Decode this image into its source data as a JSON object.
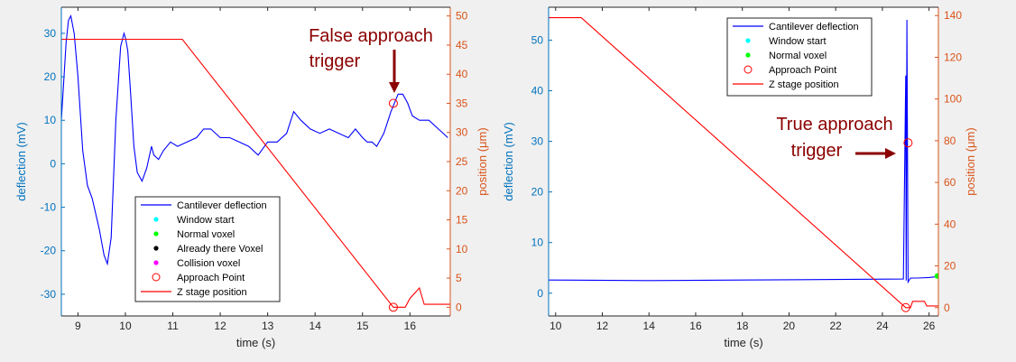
{
  "chart_data": [
    {
      "type": "line",
      "xlabel": "time (s)",
      "ylabel_left": "deflection (mV)",
      "ylabel_right": "position (μm)",
      "xlim": [
        8.65,
        16.85
      ],
      "ylim_left": [
        -35,
        36
      ],
      "ylim_right": [
        -1.5,
        51.5
      ],
      "xticks": [
        "9",
        "10",
        "11",
        "12",
        "13",
        "14",
        "15",
        "16"
      ],
      "yticks_left": [
        "30",
        "20",
        "10",
        "0",
        "-10",
        "-20",
        "-30"
      ],
      "yticks_right": [
        "50",
        "45",
        "40",
        "35",
        "30",
        "25",
        "20",
        "15",
        "10",
        "5",
        "0"
      ],
      "legend_position": "bottom-right",
      "legend": [
        "Cantilever deflection",
        "Window start",
        "Normal voxel",
        "Already there Voxel",
        "Collision voxel",
        "Approach Point",
        "Z stage position"
      ],
      "annotation": [
        "False approach",
        "trigger"
      ],
      "series": [
        {
          "name": "Cantilever deflection",
          "axis": "left",
          "color": "#0000ff",
          "x": [
            8.65,
            8.75,
            8.8,
            8.85,
            8.92,
            9.0,
            9.1,
            9.2,
            9.3,
            9.45,
            9.55,
            9.62,
            9.7,
            9.8,
            9.9,
            9.97,
            10.0,
            10.05,
            10.1,
            10.18,
            10.25,
            10.35,
            10.45,
            10.55,
            10.6,
            10.7,
            10.8,
            10.95,
            11.1,
            11.3,
            11.5,
            11.65,
            11.8,
            12.0,
            12.2,
            12.4,
            12.6,
            12.8,
            13.0,
            13.2,
            13.4,
            13.55,
            13.7,
            13.9,
            14.1,
            14.3,
            14.5,
            14.7,
            14.85,
            15.0,
            15.1,
            15.2,
            15.3,
            15.45,
            15.6,
            15.75,
            15.85,
            15.95,
            16.05,
            16.2,
            16.4,
            16.6,
            16.8
          ],
          "y": [
            10,
            28,
            33,
            34,
            30,
            20,
            3,
            -5,
            -8,
            -15,
            -21,
            -23,
            -17,
            10,
            27,
            30,
            29,
            26,
            18,
            4,
            -2,
            -4,
            -1,
            4,
            2,
            1,
            3,
            5,
            4,
            5,
            6,
            8,
            8,
            6,
            6,
            5,
            4,
            2,
            5,
            5,
            7,
            12,
            10,
            8,
            7,
            8,
            7,
            6,
            8,
            6,
            5,
            5,
            4,
            7,
            12,
            16,
            16,
            14,
            11,
            10,
            10,
            8,
            6
          ]
        },
        {
          "name": "Z stage position",
          "axis": "right",
          "color": "#ff0000",
          "x": [
            8.65,
            11.2,
            15.65,
            15.9,
            16.0,
            16.2,
            16.3,
            16.85
          ],
          "y": [
            46,
            46,
            0,
            0,
            1.5,
            3.3,
            0.5,
            0.5
          ]
        },
        {
          "name": "Approach Point",
          "axis": "right",
          "marker": "o",
          "color": "#ff0000",
          "x": [
            15.65,
            15.65
          ],
          "y": [
            0,
            35
          ]
        }
      ]
    },
    {
      "type": "line",
      "xlabel": "time (s)",
      "ylabel_left": "deflection (mV)",
      "ylabel_right": "position (μm)",
      "xlim": [
        9.7,
        26.4
      ],
      "ylim_left": [
        -4.5,
        56.5
      ],
      "ylim_right": [
        -4,
        144
      ],
      "xticks": [
        "10",
        "12",
        "14",
        "16",
        "18",
        "20",
        "22",
        "24",
        "26"
      ],
      "yticks_left": [
        "50",
        "40",
        "30",
        "20",
        "10",
        "0"
      ],
      "yticks_right": [
        "140",
        "120",
        "100",
        "80",
        "60",
        "40",
        "20",
        "0"
      ],
      "legend_position": "top-right",
      "legend": [
        "Cantilever deflection",
        "Window start",
        "Normal voxel",
        "Approach Point",
        "Z stage position"
      ],
      "annotation": [
        "True approach",
        "trigger"
      ],
      "series": [
        {
          "name": "Cantilever deflection",
          "axis": "left",
          "color": "#0000ff",
          "x": [
            9.7,
            14,
            18,
            22,
            24.9,
            25.0,
            25.02,
            25.05,
            25.1,
            25.2,
            25.5,
            26.0,
            26.4
          ],
          "y": [
            2.6,
            2.5,
            2.6,
            2.7,
            2.8,
            43,
            2.5,
            54,
            2.2,
            3.0,
            3.0,
            3.1,
            3.3
          ]
        },
        {
          "name": "Z stage position",
          "axis": "right",
          "color": "#ff0000",
          "x": [
            9.7,
            11.1,
            25.0,
            25.2,
            25.3,
            25.8,
            25.9,
            26.4
          ],
          "y": [
            139,
            139,
            0,
            0,
            3,
            3,
            0.8,
            0.8
          ]
        },
        {
          "name": "Approach Point",
          "axis": "right",
          "marker": "o",
          "color": "#ff0000",
          "x": [
            25.0,
            25.1
          ],
          "y": [
            0,
            79
          ]
        },
        {
          "name": "Normal voxel",
          "axis": "left",
          "marker": ".",
          "color": "#00ff00",
          "x": [
            26.35
          ],
          "y": [
            3.4
          ]
        }
      ]
    }
  ]
}
